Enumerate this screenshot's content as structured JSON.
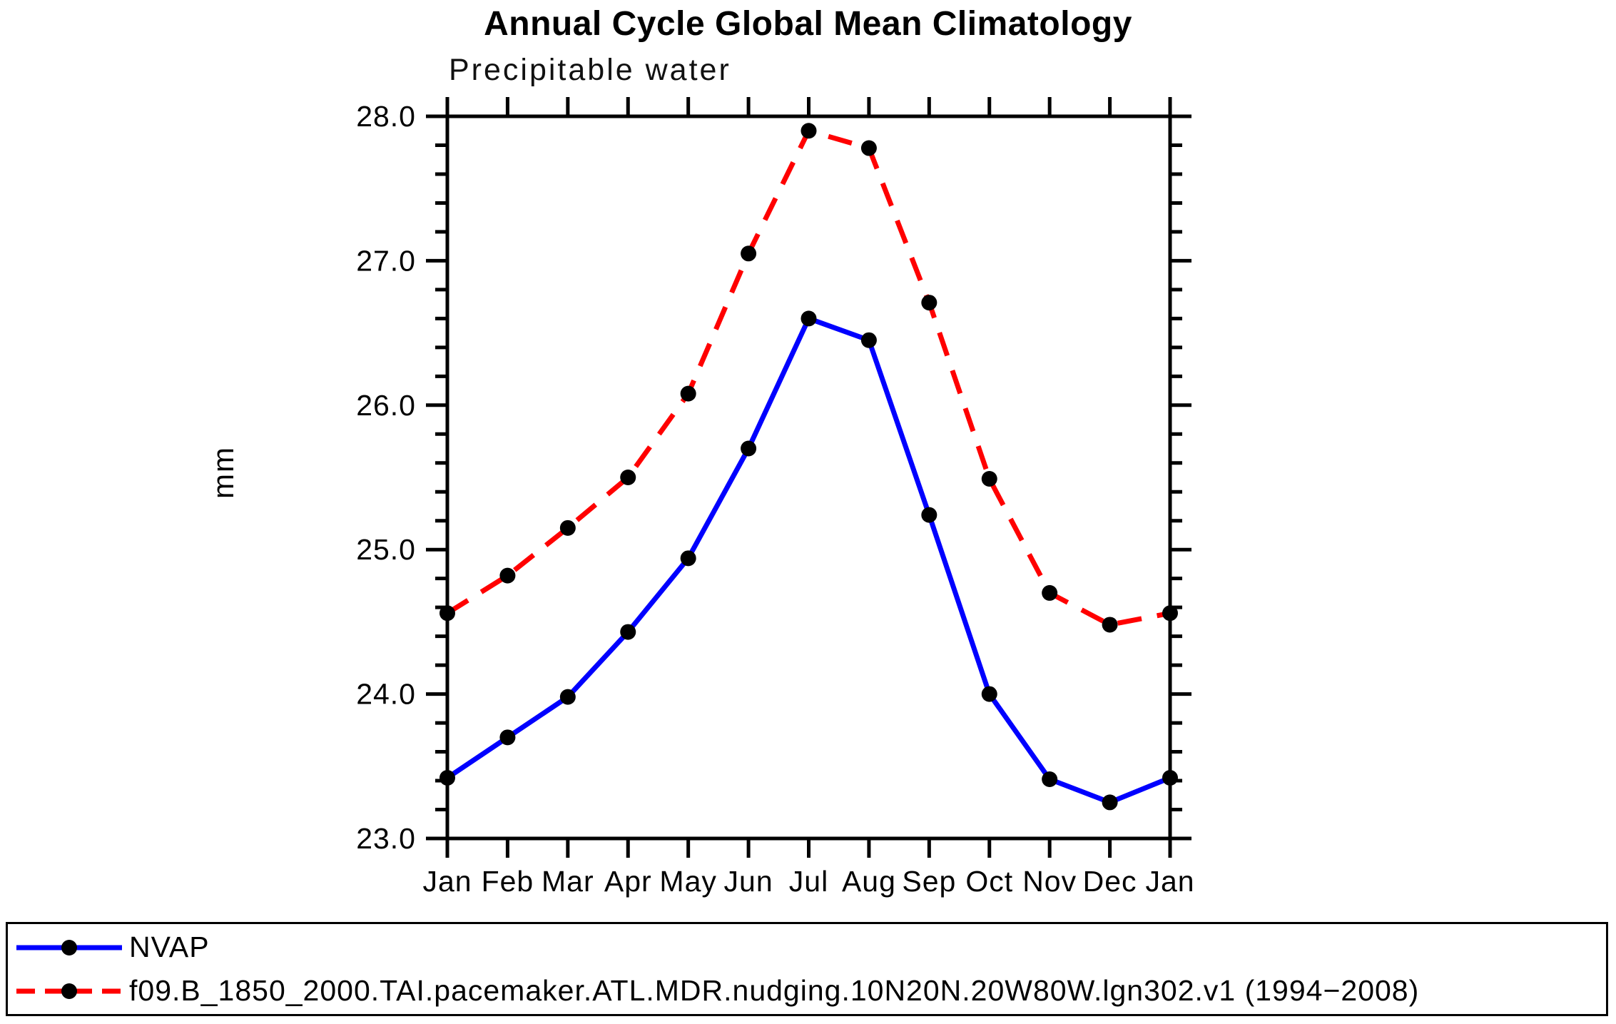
{
  "chart_data": {
    "type": "line",
    "title": "Annual Cycle Global Mean Climatology",
    "subtitle": "Precipitable water",
    "ylabel": "mm",
    "xlabel": "",
    "x_categories": [
      "Jan",
      "Feb",
      "Mar",
      "Apr",
      "May",
      "Jun",
      "Jul",
      "Aug",
      "Sep",
      "Oct",
      "Nov",
      "Dec",
      "Jan"
    ],
    "ylim": [
      23.0,
      28.0
    ],
    "y_major_ticks": [
      23.0,
      24.0,
      25.0,
      26.0,
      27.0,
      28.0
    ],
    "y_tick_labels": [
      "23.0",
      "24.0",
      "25.0",
      "26.0",
      "27.0",
      "28.0"
    ],
    "y_minor_step": 0.2,
    "grid": false,
    "legend_position": "bottom-left-box",
    "axis_color": "#000000",
    "marker": "filled-circle",
    "series": [
      {
        "name": "NVAP",
        "color": "#0000ff",
        "line_style": "solid",
        "marker_color": "#000000",
        "values": [
          23.42,
          23.7,
          23.98,
          24.43,
          24.94,
          25.7,
          26.6,
          26.45,
          25.24,
          24.0,
          23.41,
          23.25,
          23.42
        ]
      },
      {
        "name": "f09.B_1850_2000.TAI.pacemaker.ATL.MDR.nudging.10N20N.20W80W.lgn302.v1 (1994−2008)",
        "color": "#ff0000",
        "line_style": "dashed",
        "marker_color": "#000000",
        "values": [
          24.56,
          24.82,
          25.15,
          25.5,
          26.08,
          27.05,
          27.9,
          27.78,
          26.71,
          25.49,
          24.7,
          24.48,
          24.56
        ]
      }
    ]
  }
}
